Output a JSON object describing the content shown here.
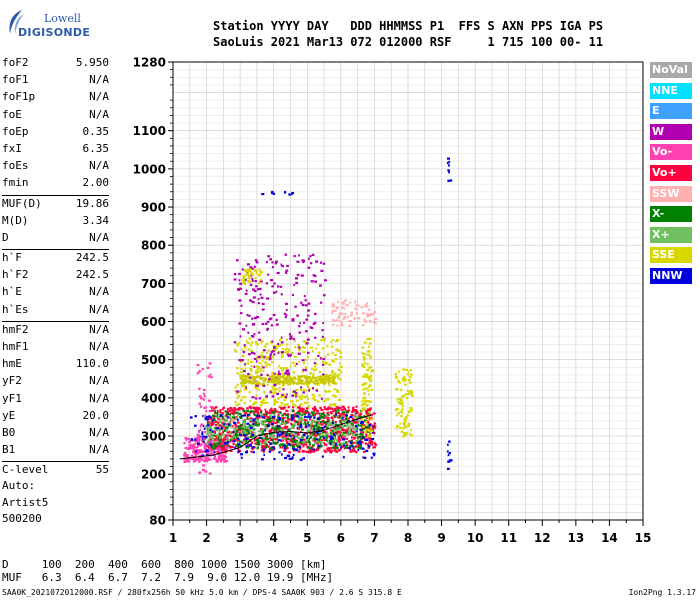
{
  "logo": {
    "line1": "Lowell",
    "line2": "DIGISONDE"
  },
  "header": {
    "labels": "Station YYYY DAY   DDD HHMMSS P1  FFS S AXN PPS IGA PS",
    "values": "SaoLuis 2021 Mar13 072 012000 RSF     1 715 100 00- 11"
  },
  "params_group1": [
    {
      "name": "foF2",
      "value": "5.950"
    },
    {
      "name": "foF1",
      "value": "N/A"
    },
    {
      "name": "foF1p",
      "value": "N/A"
    },
    {
      "name": "foE",
      "value": "N/A"
    },
    {
      "name": "foEp",
      "value": "0.35"
    },
    {
      "name": "fxI",
      "value": "6.35"
    },
    {
      "name": "foEs",
      "value": "N/A"
    },
    {
      "name": "fmin",
      "value": "2.00"
    }
  ],
  "params_group2": [
    {
      "name": "MUF(D)",
      "value": "19.86"
    },
    {
      "name": "M(D)",
      "value": "3.34"
    },
    {
      "name": "D",
      "value": "N/A"
    }
  ],
  "params_group3": [
    {
      "name": "h`F",
      "value": "242.5"
    },
    {
      "name": "h`F2",
      "value": "242.5"
    },
    {
      "name": "h`E",
      "value": "N/A"
    },
    {
      "name": "h`Es",
      "value": "N/A"
    }
  ],
  "params_group4": [
    {
      "name": "hmF2",
      "value": "N/A"
    },
    {
      "name": "hmF1",
      "value": "N/A"
    },
    {
      "name": "hmE",
      "value": "110.0"
    },
    {
      "name": "yF2",
      "value": "N/A"
    },
    {
      "name": "yF1",
      "value": "N/A"
    },
    {
      "name": "yE",
      "value": "20.0"
    },
    {
      "name": "B0",
      "value": "N/A"
    },
    {
      "name": "B1",
      "value": "N/A"
    }
  ],
  "params_group5": [
    {
      "name": "C-level",
      "value": "55"
    }
  ],
  "auto": {
    "line1": "Auto:",
    "line2": "Artist5",
    "line3": "500200"
  },
  "legend": [
    {
      "label": "NoVal",
      "color": "#a8a8a8"
    },
    {
      "label": "NNE",
      "color": "#00e0ff"
    },
    {
      "label": "E",
      "color": "#40a0ff"
    },
    {
      "label": "W",
      "color": "#b000b0"
    },
    {
      "label": "Vo-",
      "color": "#ff40b0"
    },
    {
      "label": "Vo+",
      "color": "#ff0040"
    },
    {
      "label": "SSW",
      "color": "#ffb0b0"
    },
    {
      "label": "X-",
      "color": "#008000"
    },
    {
      "label": "X+",
      "color": "#70c060"
    },
    {
      "label": "SSE",
      "color": "#d8d800"
    },
    {
      "label": "NNW",
      "color": "#0000e0"
    }
  ],
  "dmuf": {
    "d_line": "D     100  200  400  600  800 1000 1500 3000 [km]",
    "muf_line": "MUF   6.3  6.4  6.7  7.2  7.9  9.0 12.0 19.9 [MHz]"
  },
  "footer": {
    "left": "SAA0K_2021072012000.RSF / 280fx256h 50 kHz 5.0 km / DPS-4 SAA0K 903 / 2.6 S 315.8 E",
    "right": "Ion2Png 1.3.17"
  },
  "chart_data": {
    "type": "scatter",
    "title": "",
    "xlabel": "",
    "ylabel": "",
    "xlim": [
      1,
      15
    ],
    "ylim": [
      80,
      1280
    ],
    "x_ticks": [
      1,
      2,
      3,
      4,
      5,
      6,
      7,
      8,
      9,
      10,
      11,
      12,
      13,
      14,
      15
    ],
    "y_ticks": [
      80,
      200,
      300,
      400,
      500,
      600,
      700,
      800,
      900,
      1000,
      1100,
      1280
    ],
    "grid": true,
    "clusters": [
      {
        "name": "F-trace-low",
        "color": "#ff40b0",
        "x": [
          1.3,
          2.6
        ],
        "y": [
          235,
          300
        ],
        "n": 260
      },
      {
        "name": "F-trace-main",
        "color": "#ff0040",
        "x": [
          2.0,
          7.0
        ],
        "y": [
          260,
          380
        ],
        "n": 900
      },
      {
        "name": "F-trace-green",
        "color": "#008000",
        "x": [
          2.0,
          6.8
        ],
        "y": [
          270,
          370
        ],
        "n": 380
      },
      {
        "name": "F-trace-xplus",
        "color": "#70c060",
        "x": [
          1.9,
          6.5
        ],
        "y": [
          280,
          360
        ],
        "n": 250
      },
      {
        "name": "F-trace-blue",
        "color": "#0000e0",
        "x": [
          1.5,
          7.0
        ],
        "y": [
          240,
          360
        ],
        "n": 200
      },
      {
        "name": "spread-yellow",
        "color": "#d8d800",
        "x": [
          2.8,
          6.0
        ],
        "y": [
          380,
          560
        ],
        "n": 380
      },
      {
        "name": "spread-magenta",
        "color": "#b000b0",
        "x": [
          2.8,
          5.5
        ],
        "y": [
          400,
          780
        ],
        "n": 260
      },
      {
        "name": "band-450",
        "color": "#c8c800",
        "x": [
          3.0,
          5.8
        ],
        "y": [
          440,
          460
        ],
        "n": 220
      },
      {
        "name": "band-730",
        "color": "#d8d800",
        "x": [
          3.0,
          3.6
        ],
        "y": [
          700,
          740
        ],
        "n": 40
      },
      {
        "name": "pink-620",
        "color": "#ffb0b0",
        "x": [
          5.7,
          7.0
        ],
        "y": [
          590,
          660
        ],
        "n": 70
      },
      {
        "name": "col-6.7",
        "color": "#d8d800",
        "x": [
          6.6,
          6.9
        ],
        "y": [
          300,
          560
        ],
        "n": 90
      },
      {
        "name": "col-7.8",
        "color": "#d8d800",
        "x": [
          7.6,
          8.1
        ],
        "y": [
          300,
          480
        ],
        "n": 90
      },
      {
        "name": "low-pink-col",
        "color": "#ff40b0",
        "x": [
          1.7,
          2.1
        ],
        "y": [
          200,
          500
        ],
        "n": 50
      },
      {
        "name": "spikes-9.2",
        "color": "#0000e0",
        "x": [
          9.15,
          9.25
        ],
        "y": [
          215,
          290
        ],
        "n": 10
      },
      {
        "name": "spikes-9.2-high",
        "color": "#0000e0",
        "x": [
          9.15,
          9.25
        ],
        "y": [
          970,
          1035
        ],
        "n": 8
      },
      {
        "name": "high-940",
        "color": "#0000e0",
        "x": [
          3.5,
          4.6
        ],
        "y": [
          935,
          945
        ],
        "n": 10
      }
    ],
    "trace_line": {
      "color": "#000000",
      "points": [
        [
          1.2,
          240
        ],
        [
          2.2,
          250
        ],
        [
          3.0,
          270
        ],
        [
          3.5,
          300
        ],
        [
          4.0,
          310
        ],
        [
          4.5,
          312
        ],
        [
          5.0,
          308
        ],
        [
          5.5,
          315
        ],
        [
          6.0,
          330
        ],
        [
          6.5,
          345
        ],
        [
          6.9,
          355
        ]
      ]
    }
  }
}
